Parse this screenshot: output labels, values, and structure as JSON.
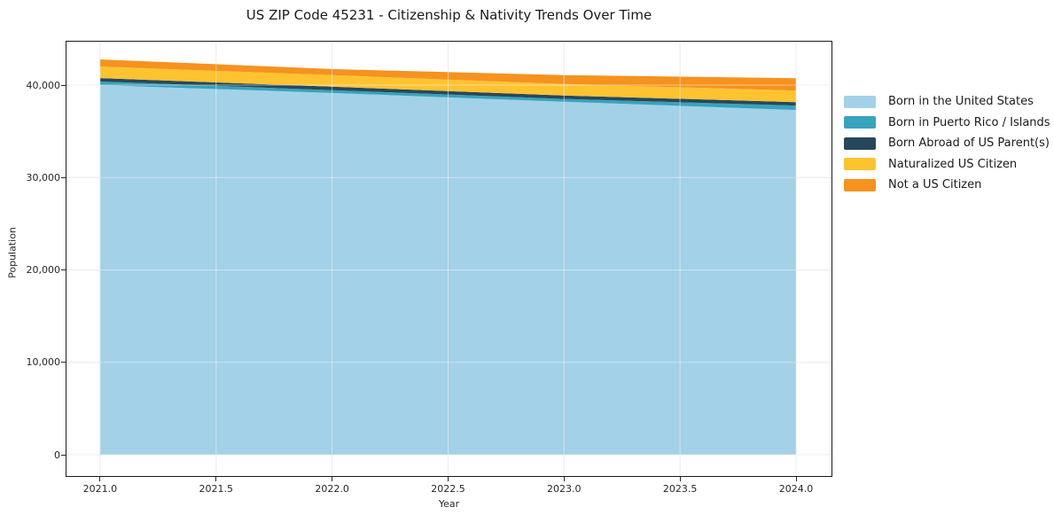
{
  "page": {
    "background": "#ffffff"
  },
  "chart_data": {
    "type": "area",
    "stacked": true,
    "title": "US ZIP Code 45231 - Citizenship & Nativity Trends Over Time",
    "xlabel": "Year",
    "ylabel": "Population",
    "x": [
      2021,
      2022,
      2023,
      2024
    ],
    "series": [
      {
        "name": "Born in the United States",
        "color": "#a3d1e8",
        "values": [
          40000,
          39150,
          38200,
          37300
        ]
      },
      {
        "name": "Born in Puerto Rico / Islands",
        "color": "#38a3bd",
        "values": [
          380,
          300,
          300,
          480
        ]
      },
      {
        "name": "Born Abroad of US Parent(s)",
        "color": "#27485c",
        "values": [
          380,
          380,
          380,
          380
        ]
      },
      {
        "name": "Naturalized US Citizen",
        "color": "#fdc330",
        "values": [
          1250,
          1240,
          1240,
          1250
        ]
      },
      {
        "name": "Not a US Citizen",
        "color": "#f6921e",
        "values": [
          770,
          670,
          960,
          1340
        ]
      }
    ],
    "totals": [
      42780,
      41740,
      41080,
      40750
    ],
    "x_ticks": [
      2021.0,
      2021.5,
      2022.0,
      2022.5,
      2023.0,
      2023.5,
      2024.0
    ],
    "x_tick_labels": [
      "2021.0",
      "2021.5",
      "2022.0",
      "2022.5",
      "2023.0",
      "2023.5",
      "2024.0"
    ],
    "y_ticks": [
      0,
      10000,
      20000,
      30000,
      40000
    ],
    "y_tick_labels": [
      "0",
      "10,000",
      "20,000",
      "30,000",
      "40,000"
    ],
    "xlim": [
      2020.855,
      2024.153
    ],
    "ylim": [
      -2300,
      44700
    ],
    "grid": true,
    "legend_position": "right-outside"
  }
}
